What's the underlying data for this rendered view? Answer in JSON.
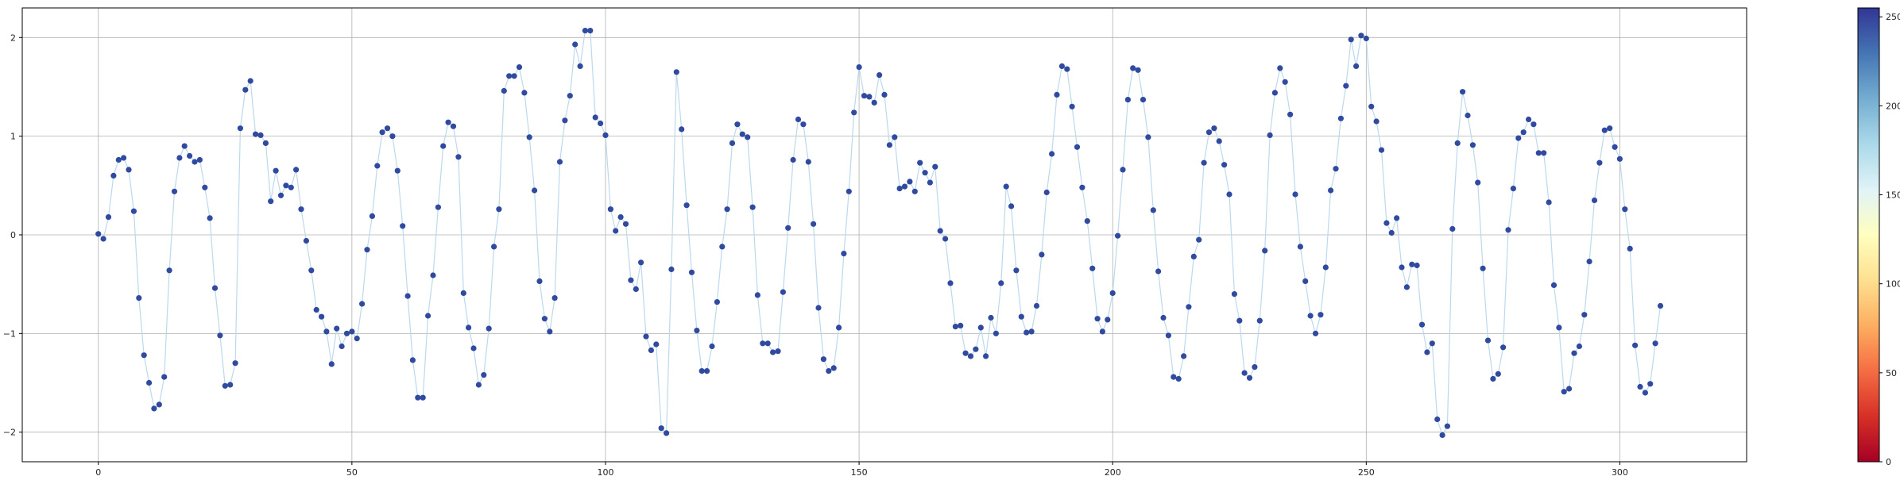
{
  "chart_data": {
    "type": "scatter",
    "title": "",
    "xlabel": "",
    "ylabel": "",
    "xlim": [
      -15,
      325
    ],
    "ylim": [
      -2.3,
      2.3
    ],
    "x_ticks": [
      0,
      50,
      100,
      150,
      200,
      250,
      300
    ],
    "y_ticks": [
      -2,
      -1,
      0,
      1,
      2
    ],
    "grid": true,
    "line_color": "#bcd9ec",
    "marker_color": "#2f4a9e",
    "x_start": 0,
    "values": [
      0.01,
      -0.04,
      0.18,
      0.6,
      0.76,
      0.78,
      0.66,
      0.24,
      -0.64,
      -1.22,
      -1.5,
      -1.76,
      -1.72,
      -1.44,
      -0.36,
      0.44,
      0.78,
      0.9,
      0.8,
      0.74,
      0.76,
      0.48,
      0.17,
      -0.54,
      -1.02,
      -1.53,
      -1.52,
      -1.3,
      1.08,
      1.47,
      1.56,
      1.02,
      1.01,
      0.93,
      0.34,
      0.65,
      0.4,
      0.5,
      0.48,
      0.66,
      0.26,
      -0.06,
      -0.36,
      -0.76,
      -0.83,
      -0.98,
      -1.31,
      -0.95,
      -1.13,
      -1.0,
      -0.98,
      -1.05,
      -0.7,
      -0.15,
      0.19,
      0.7,
      1.04,
      1.08,
      1.0,
      0.65,
      0.09,
      -0.62,
      -1.27,
      -1.65,
      -1.65,
      -0.82,
      -0.41,
      0.28,
      0.9,
      1.14,
      1.1,
      0.79,
      -0.59,
      -0.94,
      -1.15,
      -1.52,
      -1.42,
      -0.95,
      -0.12,
      0.26,
      1.46,
      1.61,
      1.61,
      1.7,
      1.44,
      0.99,
      0.45,
      -0.47,
      -0.85,
      -0.98,
      -0.64,
      0.74,
      1.16,
      1.41,
      1.93,
      1.71,
      2.07,
      2.07,
      1.19,
      1.13,
      1.01,
      0.26,
      0.04,
      0.18,
      0.11,
      -0.46,
      -0.55,
      -0.28,
      -1.03,
      -1.17,
      -1.11,
      -1.96,
      -2.01,
      -0.35,
      1.65,
      1.07,
      0.3,
      -0.38,
      -0.97,
      -1.38,
      -1.38,
      -1.13,
      -0.68,
      -0.12,
      0.26,
      0.93,
      1.12,
      1.02,
      0.99,
      0.28,
      -0.61,
      -1.1,
      -1.1,
      -1.19,
      -1.18,
      -0.58,
      0.07,
      0.76,
      1.17,
      1.12,
      0.74,
      0.11,
      -0.74,
      -1.26,
      -1.38,
      -1.35,
      -0.94,
      -0.19,
      0.44,
      1.24,
      1.7,
      1.41,
      1.4,
      1.34,
      1.62,
      1.42,
      0.91,
      0.99,
      0.47,
      0.49,
      0.54,
      0.44,
      0.73,
      0.63,
      0.53,
      0.69,
      0.04,
      -0.04,
      -0.49,
      -0.93,
      -0.92,
      -1.2,
      -1.23,
      -1.16,
      -0.94,
      -1.23,
      -0.84,
      -1.0,
      -0.49,
      0.49,
      0.29,
      -0.36,
      -0.83,
      -0.99,
      -0.98,
      -0.72,
      -0.2,
      0.43,
      0.82,
      1.42,
      1.71,
      1.68,
      1.3,
      0.89,
      0.48,
      0.14,
      -0.34,
      -0.85,
      -0.98,
      -0.86,
      -0.59,
      -0.01,
      0.66,
      1.37,
      1.69,
      1.67,
      1.37,
      0.99,
      0.25,
      -0.37,
      -0.84,
      -1.02,
      -1.44,
      -1.46,
      -1.23,
      -0.73,
      -0.22,
      -0.05,
      0.73,
      1.04,
      1.08,
      0.95,
      0.71,
      0.41,
      -0.6,
      -0.87,
      -1.4,
      -1.45,
      -1.34,
      -0.87,
      -0.16,
      1.01,
      1.44,
      1.69,
      1.55,
      1.22,
      0.41,
      -0.12,
      -0.47,
      -0.82,
      -1.0,
      -0.81,
      -0.33,
      0.45,
      0.67,
      1.18,
      1.51,
      1.98,
      1.71,
      2.02,
      1.99,
      1.3,
      1.15,
      0.86,
      0.12,
      0.02,
      0.17,
      -0.33,
      -0.53,
      -0.3,
      -0.31,
      -0.91,
      -1.19,
      -1.1,
      -1.87,
      -2.03,
      -1.94,
      0.06,
      0.93,
      1.45,
      1.21,
      0.91,
      0.53,
      -0.34,
      -1.07,
      -1.46,
      -1.41,
      -1.14,
      0.05,
      0.47,
      0.98,
      1.04,
      1.17,
      1.12,
      0.83,
      0.83,
      0.33,
      -0.51,
      -0.94,
      -1.59,
      -1.56,
      -1.2,
      -1.13,
      -0.81,
      -0.27,
      0.35,
      0.73,
      1.06,
      1.08,
      0.89,
      0.77,
      0.26,
      -0.14,
      -1.12,
      -1.54,
      -1.6,
      -1.51,
      -1.1,
      -0.72
    ],
    "colorbar": {
      "min": 0,
      "max": 255,
      "ticks": [
        0,
        50,
        100,
        150,
        200,
        250
      ],
      "colors": [
        "#a50026",
        "#d73027",
        "#f46d43",
        "#fdae61",
        "#fee090",
        "#ffffbf",
        "#e0f3f8",
        "#abd9e9",
        "#74add1",
        "#4575b4",
        "#313695"
      ]
    }
  }
}
